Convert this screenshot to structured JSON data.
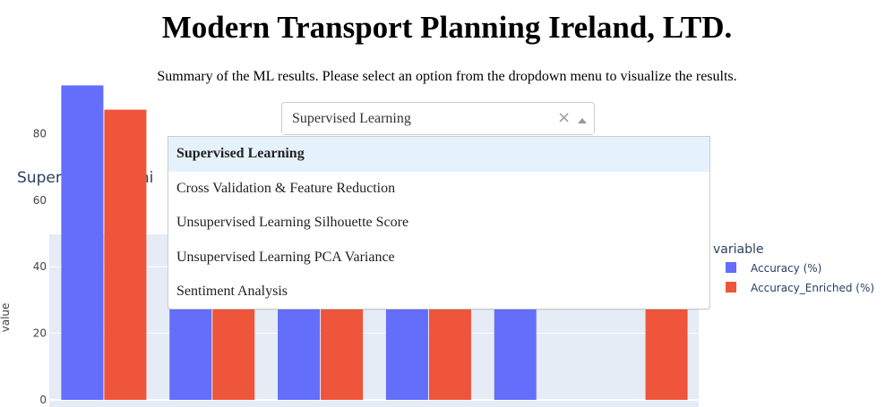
{
  "header": {
    "title": "Modern Transport Planning Ireland, LTD.",
    "subtitle": "Summary of the ML results. Please select an option from the dropdown menu to visualize the results."
  },
  "dropdown": {
    "selected": "Supervised Learning",
    "clear_glyph": "×",
    "options": [
      {
        "label": "Supervised Learning"
      },
      {
        "label": "Cross Validation & Feature Reduction"
      },
      {
        "label": "Unsupervised Learning Silhouette Score"
      },
      {
        "label": "Unsupervised Learning PCA Variance"
      },
      {
        "label": "Sentiment Analysis"
      }
    ]
  },
  "chart_data": {
    "type": "bar",
    "title": "Supervised Learni",
    "ylabel": "value",
    "xlabel": "",
    "ylim": [
      0,
      100
    ],
    "yticks": [
      0,
      20,
      40,
      60,
      80
    ],
    "grid": true,
    "legend": {
      "title": "variable",
      "placement": "right"
    },
    "categories": [
      "",
      "",
      "",
      "",
      "",
      ""
    ],
    "series": [
      {
        "name": "Accuracy (%)",
        "color": "#636efa",
        "values": [
          94.5,
          55,
          55,
          55,
          55,
          0
        ]
      },
      {
        "name": "Accuracy_Enriched (%)",
        "color": "#ef553b",
        "values": [
          87.2,
          55,
          55,
          55,
          0,
          55
        ]
      }
    ]
  }
}
